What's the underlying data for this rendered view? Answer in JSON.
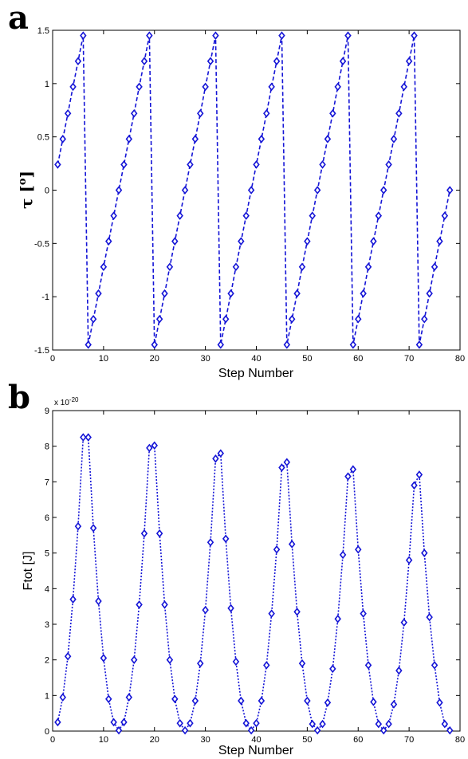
{
  "chart_data": [
    {
      "panel": "a",
      "type": "line",
      "xlabel": "Step Number",
      "ylabel": "τ [°]",
      "ylabel_main": "τ [",
      "ylabel_sup": "o",
      "ylabel_end": "]",
      "xlim": [
        0,
        80
      ],
      "ylim": [
        -1.5,
        1.5
      ],
      "xticks": [
        0,
        10,
        20,
        30,
        40,
        50,
        60,
        70,
        80
      ],
      "xtick_labels": [
        "0",
        "10",
        "20",
        "30",
        "40",
        "50",
        "60",
        "70",
        "80"
      ],
      "yticks": [
        -1.5,
        -1,
        -0.5,
        0,
        0.5,
        1,
        1.5
      ],
      "ytick_labels": [
        "-1.5",
        "-1",
        "-0.5",
        "0",
        "0.5",
        "1",
        "1.5"
      ],
      "line_style": "dashed",
      "marker": "diamond",
      "color": "#1414d6",
      "grid": false,
      "series": [
        {
          "x": [
            1,
            2,
            3,
            4,
            5,
            6,
            7,
            8,
            9,
            10,
            11,
            12,
            13,
            14,
            15,
            16,
            17,
            18,
            19,
            20,
            21,
            22,
            23,
            24,
            25,
            26,
            27,
            28,
            29,
            30,
            31,
            32,
            33,
            34,
            35,
            36,
            37,
            38,
            39,
            40,
            41,
            42,
            43,
            44,
            45,
            46,
            47,
            48,
            49,
            50,
            51,
            52,
            53,
            54,
            55,
            56,
            57,
            58,
            59,
            60,
            61,
            62,
            63,
            64,
            65,
            66,
            67,
            68,
            69,
            70,
            71,
            72,
            73,
            74,
            75,
            76,
            77,
            78
          ],
          "values": [
            0.24,
            0.48,
            0.72,
            0.97,
            1.21,
            1.45,
            -1.45,
            -1.21,
            -0.97,
            -0.72,
            -0.48,
            -0.24,
            0.0,
            0.24,
            0.48,
            0.72,
            0.97,
            1.21,
            1.45,
            -1.45,
            -1.21,
            -0.97,
            -0.72,
            -0.48,
            -0.24,
            0.0,
            0.24,
            0.48,
            0.72,
            0.97,
            1.21,
            1.45,
            -1.45,
            -1.21,
            -0.97,
            -0.72,
            -0.48,
            -0.24,
            0.0,
            0.24,
            0.48,
            0.72,
            0.97,
            1.21,
            1.45,
            -1.45,
            -1.21,
            -0.97,
            -0.72,
            -0.48,
            -0.24,
            0.0,
            0.24,
            0.48,
            0.72,
            0.97,
            1.21,
            1.45,
            -1.45,
            -1.21,
            -0.97,
            -0.72,
            -0.48,
            -0.24,
            0.0,
            0.24,
            0.48,
            0.72,
            0.97,
            1.21,
            1.45,
            -1.45,
            -1.21,
            -0.97,
            -0.72,
            -0.48,
            -0.24,
            0.0
          ]
        }
      ]
    },
    {
      "panel": "b",
      "type": "line",
      "xlabel": "Step Number",
      "ylabel": "Ftot [J]",
      "y_multiplier": "x 10",
      "y_exponent": "-20",
      "xlim": [
        0,
        80
      ],
      "ylim": [
        0,
        9
      ],
      "xticks": [
        0,
        10,
        20,
        30,
        40,
        50,
        60,
        70,
        80
      ],
      "xtick_labels": [
        "0",
        "10",
        "20",
        "30",
        "40",
        "50",
        "60",
        "70",
        "80"
      ],
      "yticks": [
        0,
        1,
        2,
        3,
        4,
        5,
        6,
        7,
        8,
        9
      ],
      "ytick_labels": [
        "0",
        "1",
        "2",
        "3",
        "4",
        "5",
        "6",
        "7",
        "8",
        "9"
      ],
      "line_style": "dotted",
      "marker": "diamond",
      "color": "#1414d6",
      "grid": false,
      "series": [
        {
          "x": [
            1,
            2,
            3,
            4,
            5,
            6,
            7,
            8,
            9,
            10,
            11,
            12,
            13,
            14,
            15,
            16,
            17,
            18,
            19,
            20,
            21,
            22,
            23,
            24,
            25,
            26,
            27,
            28,
            29,
            30,
            31,
            32,
            33,
            34,
            35,
            36,
            37,
            38,
            39,
            40,
            41,
            42,
            43,
            44,
            45,
            46,
            47,
            48,
            49,
            50,
            51,
            52,
            53,
            54,
            55,
            56,
            57,
            58,
            59,
            60,
            61,
            62,
            63,
            64,
            65,
            66,
            67,
            68,
            69,
            70,
            71,
            72,
            73,
            74,
            75,
            76,
            77,
            78
          ],
          "values": [
            0.25,
            0.95,
            2.1,
            3.7,
            5.75,
            8.25,
            8.25,
            5.7,
            3.65,
            2.05,
            0.9,
            0.25,
            0.02,
            0.25,
            0.95,
            2.0,
            3.55,
            5.55,
            7.95,
            8.02,
            5.55,
            3.55,
            2.0,
            0.9,
            0.22,
            0.02,
            0.22,
            0.85,
            1.9,
            3.4,
            5.3,
            7.65,
            7.8,
            5.4,
            3.45,
            1.95,
            0.85,
            0.22,
            0.02,
            0.22,
            0.85,
            1.85,
            3.3,
            5.1,
            7.4,
            7.55,
            5.25,
            3.35,
            1.9,
            0.85,
            0.2,
            0.02,
            0.2,
            0.8,
            1.75,
            3.15,
            4.95,
            7.15,
            7.35,
            5.1,
            3.3,
            1.85,
            0.82,
            0.2,
            0.02,
            0.2,
            0.75,
            1.7,
            3.05,
            4.8,
            6.9,
            7.2,
            5.0,
            3.2,
            1.85,
            0.8,
            0.2,
            0.02
          ]
        }
      ]
    }
  ],
  "panels": [
    {
      "letter": "a"
    },
    {
      "letter": "b"
    }
  ]
}
